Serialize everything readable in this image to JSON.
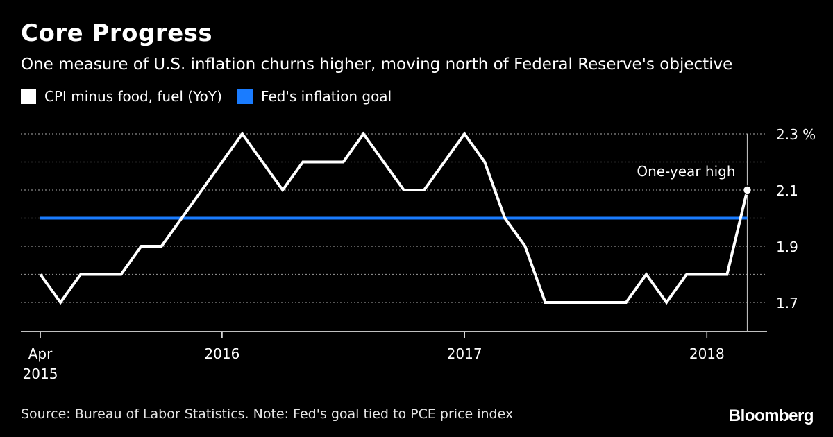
{
  "header": {
    "title": "Core Progress",
    "subtitle": "One measure of U.S. inflation churns higher, moving north of Federal Reserve's objective"
  },
  "footer": {
    "source": "Source: Bureau of Labor Statistics. Note: Fed's goal tied to PCE price index",
    "logo": "Bloomberg"
  },
  "colors": {
    "background": "#000000",
    "cpi_line": "#ffffff",
    "goal_line": "#1a7cff",
    "grid": "#777777"
  },
  "chart_data": {
    "type": "line",
    "title": "Core Progress",
    "subtitle": "One measure of U.S. inflation churns higher, moving north of Federal Reserve's objective",
    "ylim": [
      1.6,
      2.3
    ],
    "y_ticks": [
      1.7,
      1.9,
      2.1,
      2.3
    ],
    "y_tick_labels": [
      "1.7",
      "1.9",
      "2.1",
      "2.3 %"
    ],
    "x_tick_labels": [
      {
        "date": "2015-04",
        "label": "Apr",
        "label2": "2015"
      },
      {
        "date": "2016-01",
        "label": "2016"
      },
      {
        "date": "2017-01",
        "label": "2017"
      },
      {
        "date": "2018-01",
        "label": "2018"
      }
    ],
    "grid": true,
    "legend_position": "top-left",
    "series": [
      {
        "name": "CPI minus food, fuel (YoY)",
        "color": "#ffffff",
        "x": [
          "2015-04",
          "2015-05",
          "2015-06",
          "2015-07",
          "2015-08",
          "2015-09",
          "2015-10",
          "2015-11",
          "2015-12",
          "2016-01",
          "2016-02",
          "2016-03",
          "2016-04",
          "2016-05",
          "2016-06",
          "2016-07",
          "2016-08",
          "2016-09",
          "2016-10",
          "2016-11",
          "2016-12",
          "2017-01",
          "2017-02",
          "2017-03",
          "2017-04",
          "2017-05",
          "2017-06",
          "2017-07",
          "2017-08",
          "2017-09",
          "2017-10",
          "2017-11",
          "2017-12",
          "2018-01",
          "2018-02",
          "2018-03"
        ],
        "values": [
          1.8,
          1.7,
          1.8,
          1.8,
          1.8,
          1.9,
          1.9,
          2.0,
          2.1,
          2.2,
          2.3,
          2.2,
          2.1,
          2.2,
          2.2,
          2.2,
          2.3,
          2.2,
          2.1,
          2.1,
          2.2,
          2.3,
          2.2,
          2.0,
          1.9,
          1.7,
          1.7,
          1.7,
          1.7,
          1.7,
          1.8,
          1.7,
          1.8,
          1.8,
          1.8,
          2.1
        ]
      },
      {
        "name": "Fed's inflation goal",
        "color": "#1a7cff",
        "x": [
          "2015-04",
          "2018-03"
        ],
        "values": [
          2.0,
          2.0
        ]
      }
    ],
    "annotations": [
      {
        "text": "One-year high",
        "x": "2018-03",
        "y": 2.1
      }
    ]
  }
}
